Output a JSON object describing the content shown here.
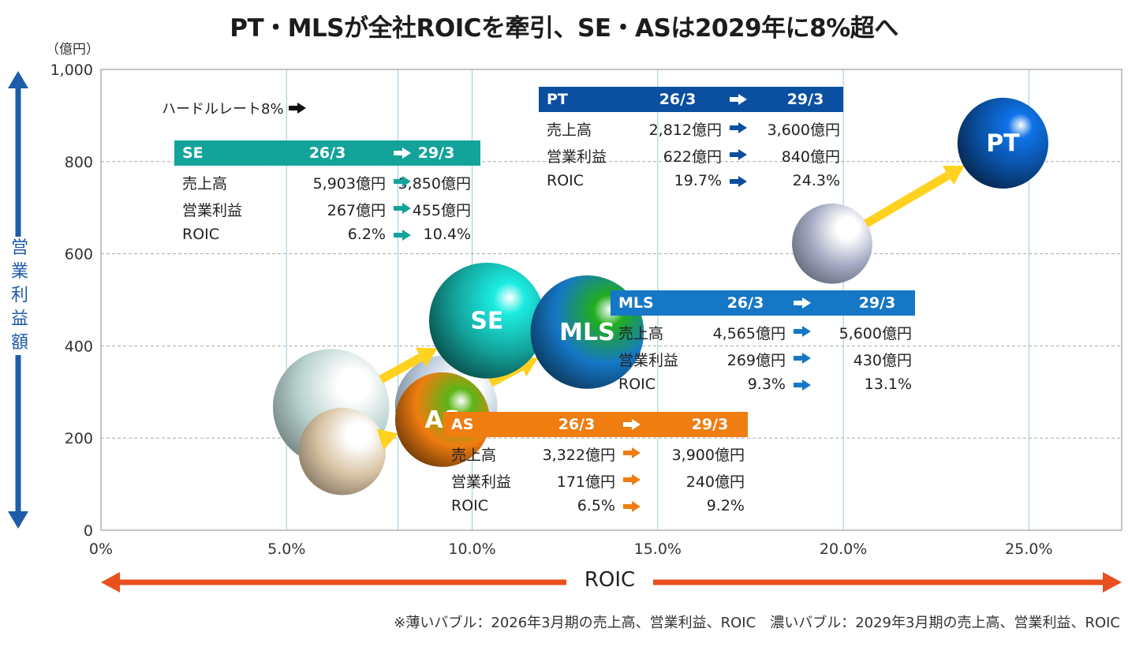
{
  "title": "PT・MLSが全社ROICを牽引、SE・ASは2029年に8%超へ",
  "footnote": "※薄いバブル：2026年3月期の売上高、営業利益、ROIC　濃いバブル：2029年3月期の売上高、営業利益、ROIC",
  "hurdle_label": "ハードルレート8%",
  "colors": {
    "SE": "#13a39b",
    "PT": "#0a4fa0",
    "MLS": "#1677c6",
    "AS": "#ef7d10",
    "arrow": "#ffd21f",
    "axis_arrow_v": "#1d5ca8",
    "axis_arrow_h": "#e8501e"
  },
  "tables": [
    {
      "name": "SE",
      "color": "#13a39b",
      "from": "26/3",
      "to": "29/3",
      "rows": [
        [
          "売上高",
          "5,903億円",
          "5,850億円"
        ],
        [
          "営業利益",
          "267億円",
          "455億円"
        ],
        [
          "ROIC",
          "6.2%",
          "10.4%"
        ]
      ]
    },
    {
      "name": "PT",
      "color": "#0a4fa0",
      "from": "26/3",
      "to": "29/3",
      "rows": [
        [
          "売上高",
          "2,812億円",
          "3,600億円"
        ],
        [
          "営業利益",
          "622億円",
          "840億円"
        ],
        [
          "ROIC",
          "19.7%",
          "24.3%"
        ]
      ]
    },
    {
      "name": "MLS",
      "color": "#1677c6",
      "from": "26/3",
      "to": "29/3",
      "rows": [
        [
          "売上高",
          "4,565億円",
          "5,600億円"
        ],
        [
          "営業利益",
          "269億円",
          "430億円"
        ],
        [
          "ROIC",
          "9.3%",
          "13.1%"
        ]
      ]
    },
    {
      "name": "AS",
      "color": "#ef7d10",
      "from": "26/3",
      "to": "29/3",
      "rows": [
        [
          "売上高",
          "3,322億円",
          "3,900億円"
        ],
        [
          "営業利益",
          "171億円",
          "240億円"
        ],
        [
          "ROIC",
          "6.5%",
          "9.2%"
        ]
      ]
    }
  ],
  "chart_data": {
    "type": "scatter",
    "title": "PT・MLSが全社ROICを牽引、SE・ASは2029年に8%超へ",
    "xlabel": "ROIC",
    "ylabel": "営業利益額",
    "yunit": "（億円）",
    "xlim": [
      0,
      27.5
    ],
    "ylim": [
      0,
      1000
    ],
    "x_ticks": [
      "0%",
      "5.0%",
      "10.0%",
      "15.0%",
      "20.0%",
      "25.0%"
    ],
    "x_tick_values": [
      0,
      5,
      10,
      15,
      20,
      25
    ],
    "y_ticks": [
      "0",
      "200",
      "400",
      "600",
      "800",
      "1,000"
    ],
    "y_tick_values": [
      0,
      200,
      400,
      600,
      800,
      1000
    ],
    "hurdle_rate": 8,
    "grid": true,
    "series": [
      {
        "name": "SE",
        "color": "#13a39b",
        "light": "#b8d2cf",
        "from": {
          "x": 6.2,
          "y": 267,
          "size": 5903
        },
        "to": {
          "x": 10.4,
          "y": 455,
          "size": 5850
        }
      },
      {
        "name": "MLS",
        "color": "#1677c6",
        "light": "#b6c8dc",
        "from": {
          "x": 9.3,
          "y": 269,
          "size": 4565
        },
        "to": {
          "x": 13.1,
          "y": 430,
          "size": 5600
        }
      },
      {
        "name": "AS",
        "color": "#ef7d10",
        "light": "#d8c2a3",
        "from": {
          "x": 6.5,
          "y": 171,
          "size": 3322
        },
        "to": {
          "x": 9.2,
          "y": 240,
          "size": 3900
        }
      },
      {
        "name": "PT",
        "color": "#0a4fa0",
        "light": "#a3a9c2",
        "from": {
          "x": 19.7,
          "y": 622,
          "size": 2812
        },
        "to": {
          "x": 24.3,
          "y": 840,
          "size": 3600
        }
      }
    ]
  }
}
